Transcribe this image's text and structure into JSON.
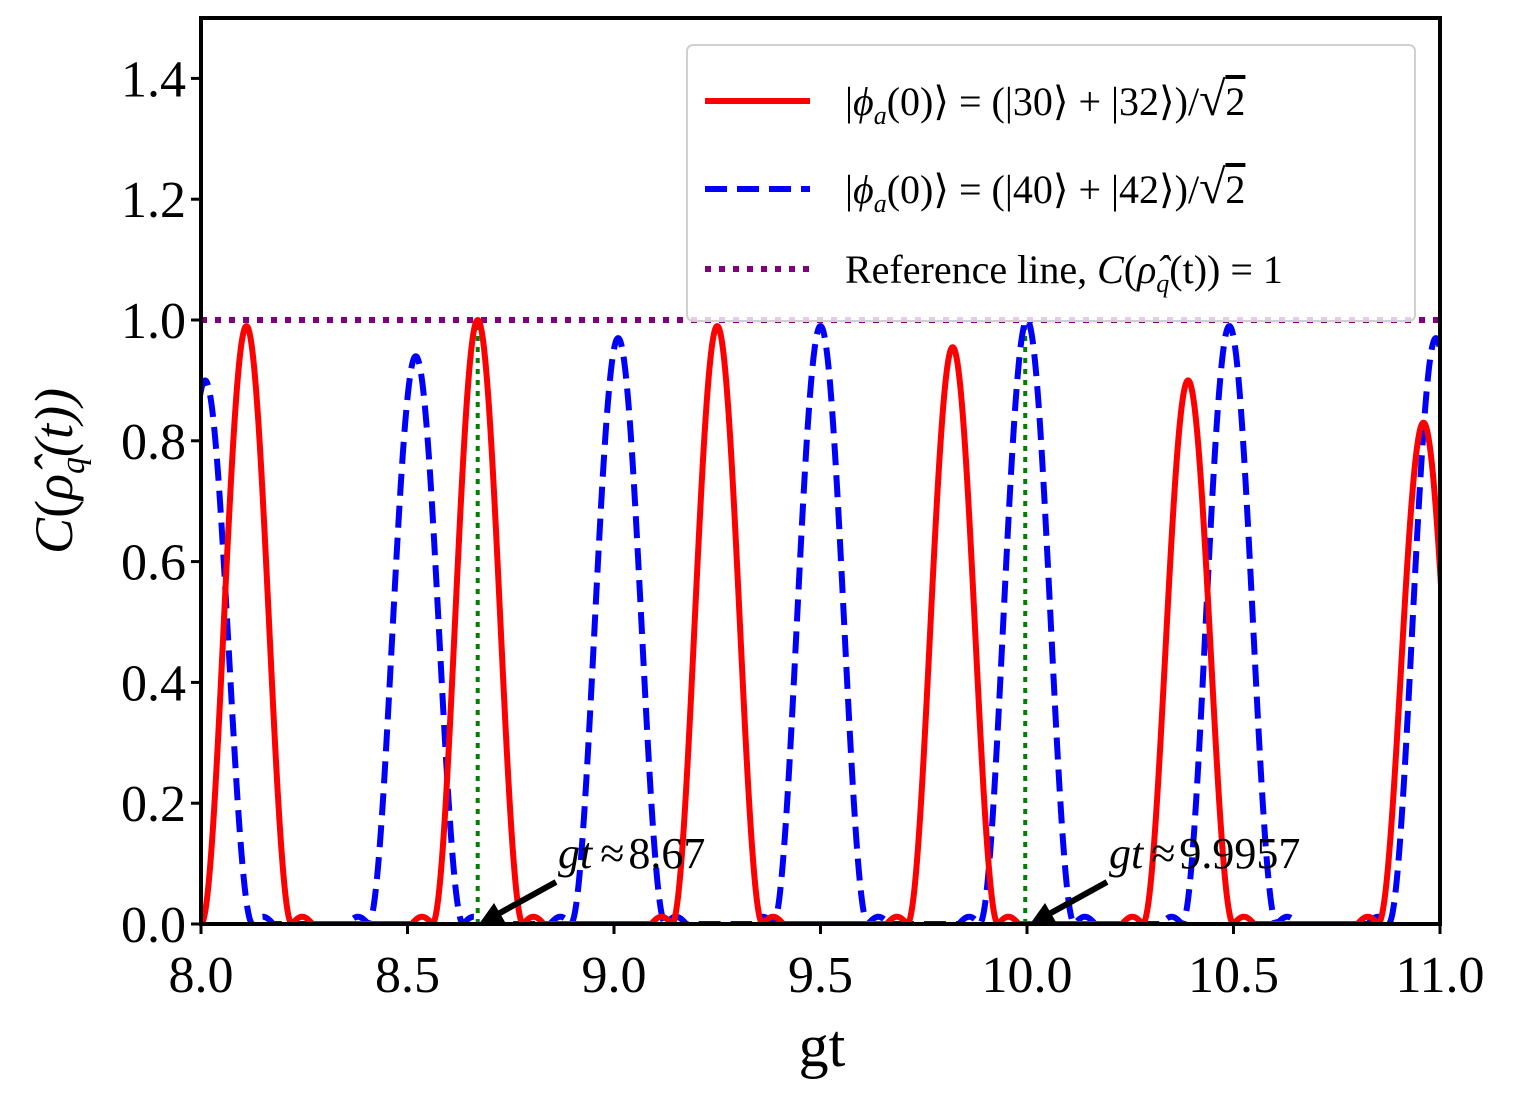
{
  "chart_data": {
    "type": "line",
    "title": "",
    "xlabel": "gt",
    "ylabel": "C(ρ̂q(t))",
    "ylabel_parts": {
      "C": "C",
      "open": "(",
      "rho": "ρ̂",
      "sub": "q",
      "args": "(t))"
    },
    "xlim": [
      8.0,
      11.0
    ],
    "ylim": [
      0.0,
      1.5
    ],
    "x_ticks": [
      8.0,
      8.5,
      9.0,
      9.5,
      10.0,
      10.5,
      11.0
    ],
    "x_tick_labels": [
      "8.0",
      "8.5",
      "9.0",
      "9.5",
      "10.0",
      "10.5",
      "11.0"
    ],
    "y_ticks": [
      0.0,
      0.2,
      0.4,
      0.6,
      0.8,
      1.0,
      1.2,
      1.4
    ],
    "y_tick_labels": [
      "0.0",
      "0.2",
      "0.4",
      "0.6",
      "0.8",
      "1.0",
      "1.2",
      "1.4"
    ],
    "legend_position": "top-right",
    "series": [
      {
        "id": "red",
        "name": "|φa(0)⟩ = (|30⟩ + |32⟩)/√2",
        "legend_parts": {
          "bar": "|",
          "phi": "ϕ",
          "sub": "a",
          "rest": "(0)⟩ = (|30⟩ + |32⟩)/",
          "sqrt": "√",
          "two": "2"
        },
        "color": "#ff0000",
        "style": "solid",
        "peaks": [
          {
            "x": 8.11,
            "y": 0.99
          },
          {
            "x": 8.67,
            "y": 1.0
          },
          {
            "x": 9.25,
            "y": 0.99
          },
          {
            "x": 9.82,
            "y": 0.955
          },
          {
            "x": 10.39,
            "y": 0.9
          },
          {
            "x": 10.96,
            "y": 0.83
          }
        ],
        "lobe_halfwidth": 0.11
      },
      {
        "id": "blue",
        "name": "|φa(0)⟩ = (|40⟩ + |42⟩)/√2",
        "legend_parts": {
          "bar": "|",
          "phi": "ϕ",
          "sub": "a",
          "rest": "(0)⟩ = (|40⟩ + |42⟩)/",
          "sqrt": "√",
          "two": "2"
        },
        "color": "#0000ff",
        "style": "dashed",
        "peaks": [
          {
            "x": 8.01,
            "y": 0.9
          },
          {
            "x": 8.52,
            "y": 0.94
          },
          {
            "x": 9.01,
            "y": 0.97
          },
          {
            "x": 9.5,
            "y": 0.99
          },
          {
            "x": 10.0,
            "y": 1.0
          },
          {
            "x": 10.49,
            "y": 0.99
          },
          {
            "x": 10.99,
            "y": 0.97
          }
        ],
        "lobe_halfwidth": 0.115
      },
      {
        "id": "reference",
        "name": "Reference line, C(ρ̂q(t)) = 1",
        "legend_parts": {
          "text": "Reference line, ",
          "C": "C",
          "open": "(",
          "rho": "ρ̂",
          "sub": "q",
          "args": "(t)) = 1"
        },
        "color": "#800080",
        "style": "dotted",
        "y": 1.0
      }
    ],
    "vertical_markers": [
      {
        "x": 8.67,
        "y_top": 1.0,
        "color": "#008000",
        "style": "dotted"
      },
      {
        "x": 9.9957,
        "y_top": 1.0,
        "color": "#008000",
        "style": "dotted"
      }
    ],
    "annotations": [
      {
        "id": "a1",
        "prefix": "gt",
        "approx": "≈",
        "value": "8.67",
        "target_x": 8.67,
        "target_y": 0.0
      },
      {
        "id": "a2",
        "prefix": "gt",
        "approx": "≈",
        "value": "9.9957",
        "target_x": 9.9957,
        "target_y": 0.0
      }
    ]
  }
}
